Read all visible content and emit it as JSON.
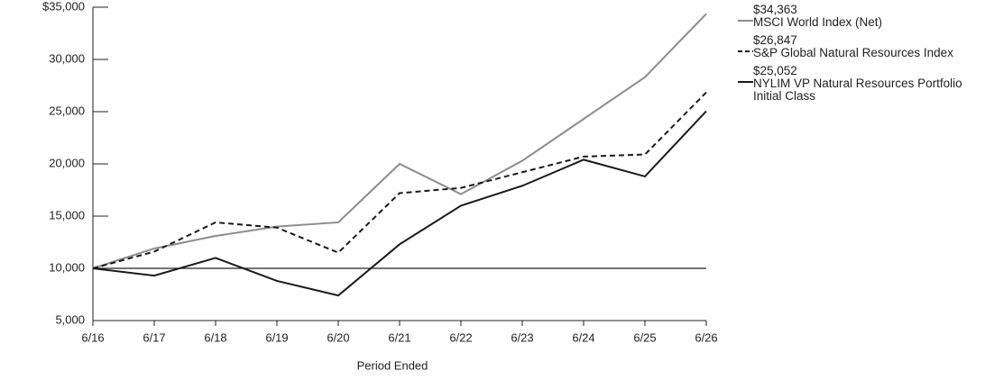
{
  "chart_data": {
    "type": "line",
    "x_label": "Period Ended",
    "categories": [
      "6/16",
      "6/17",
      "6/18",
      "6/19",
      "6/20",
      "6/21",
      "6/22",
      "6/23",
      "6/24",
      "6/25",
      "6/26"
    ],
    "series": [
      {
        "name": "MSCI World Index (Net)",
        "color": "#8c8c8c",
        "dash": false,
        "end_label": "$34,363",
        "values": [
          10000,
          11900,
          13100,
          14000,
          14400,
          20000,
          17100,
          20300,
          24300,
          28300,
          34363
        ]
      },
      {
        "name": "S&P Global Natural Resources Index",
        "color": "#1a1a1a",
        "dash": true,
        "end_label": "$26,847",
        "values": [
          10000,
          11600,
          14400,
          13900,
          11500,
          17200,
          17700,
          19200,
          20700,
          20900,
          26847
        ]
      },
      {
        "name": "NYLIM VP Natural Resources Portfolio Initial Class",
        "color": "#1a1a1a",
        "dash": false,
        "end_label": "$25,052",
        "values": [
          10000,
          9300,
          11000,
          8800,
          7400,
          12300,
          16000,
          17900,
          20400,
          18800,
          25052
        ]
      }
    ],
    "ylim": [
      5000,
      35000
    ],
    "yticks": [
      {
        "value": 5000,
        "label": "5,000"
      },
      {
        "value": 10000,
        "label": "10,000"
      },
      {
        "value": 15000,
        "label": "15,000"
      },
      {
        "value": 20000,
        "label": "20,000"
      },
      {
        "value": 25000,
        "label": "25,000"
      },
      {
        "value": 30000,
        "label": "30,000"
      },
      {
        "value": 35000,
        "label": "$35,000"
      }
    ],
    "reference_line": 10000,
    "grid": false
  }
}
